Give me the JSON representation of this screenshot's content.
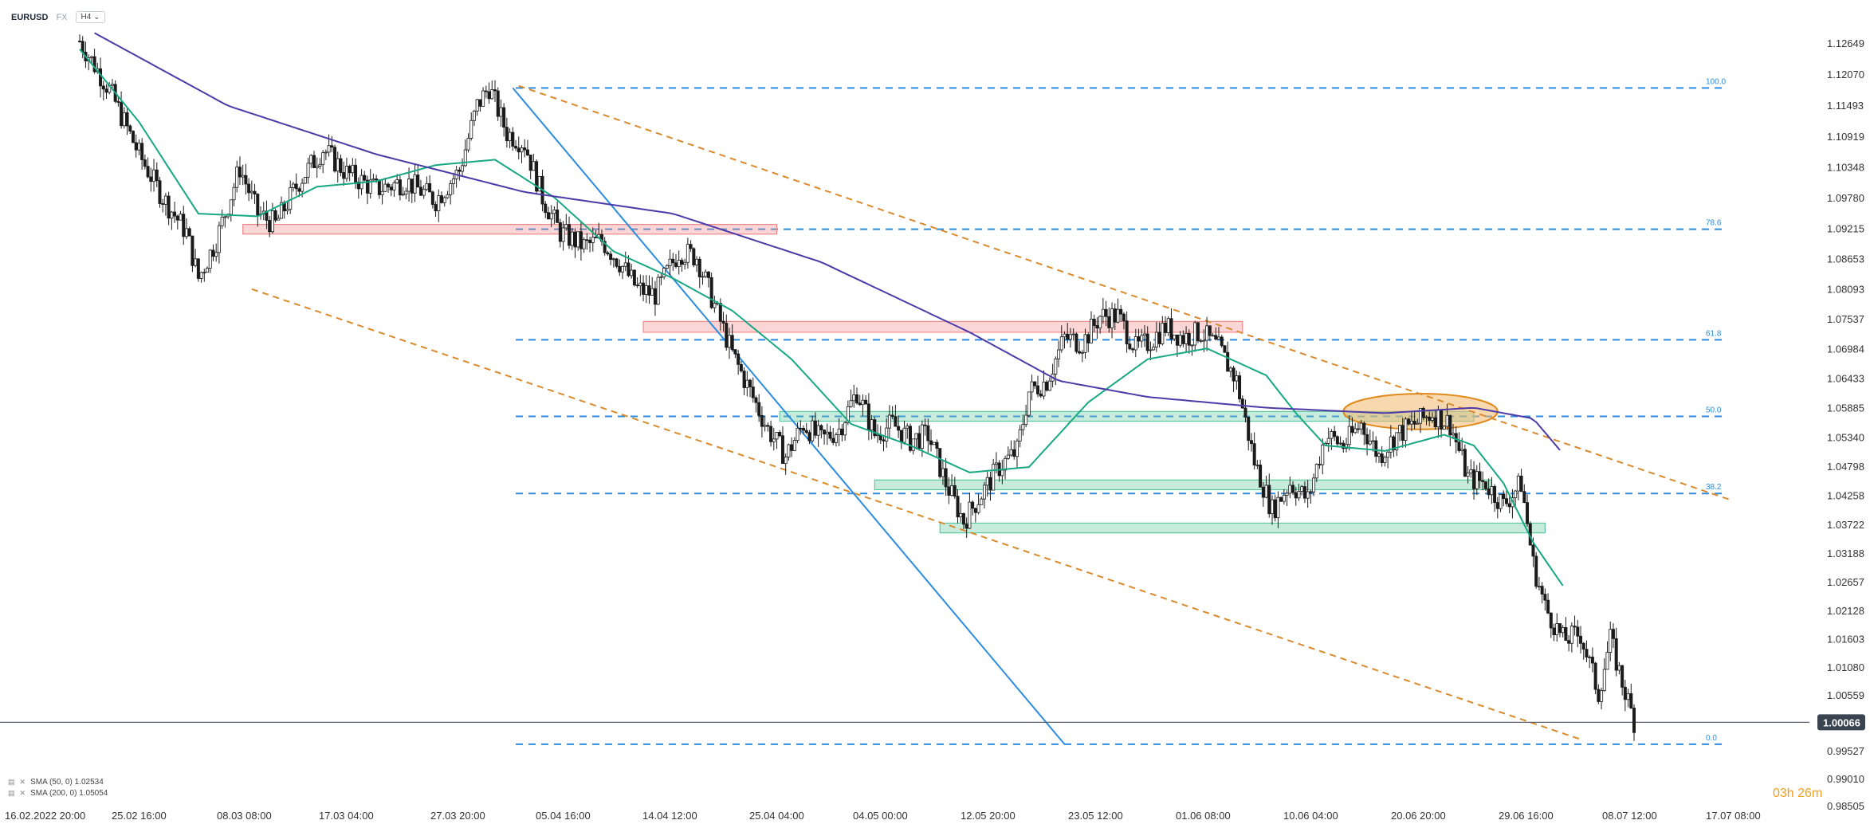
{
  "header": {
    "symbol": "EURUSD",
    "source": "FX",
    "timeframe": "H4"
  },
  "indicators": [
    {
      "label": "SMA (50, 0) 1.02534"
    },
    {
      "label": "SMA (200, 0) 1.05054"
    }
  ],
  "timer": "03h 26m",
  "chart_data": {
    "type": "candlestick",
    "symbol": "EURUSD",
    "timeframe": "H4",
    "y_ticks": [
      "1.12649",
      "1.12070",
      "1.11493",
      "1.10919",
      "1.10348",
      "1.09780",
      "1.09215",
      "1.08653",
      "1.08093",
      "1.07537",
      "1.06984",
      "1.06433",
      "1.05885",
      "1.05340",
      "1.04798",
      "1.04258",
      "1.03722",
      "1.03188",
      "1.02657",
      "1.02128",
      "1.01603",
      "1.01080",
      "1.00559",
      "1.00066",
      "0.99527",
      "0.99010",
      "0.98505"
    ],
    "x_ticks": [
      "16.02.2022 20:00",
      "25.02 16:00",
      "08.03 08:00",
      "17.03 04:00",
      "27.03 20:00",
      "05.04 16:00",
      "14.04 12:00",
      "25.04 04:00",
      "04.05 00:00",
      "12.05 20:00",
      "23.05 12:00",
      "01.06 08:00",
      "10.06 04:00",
      "20.06 20:00",
      "29.06 16:00",
      "08.07 12:00",
      "17.07 08:00"
    ],
    "ylim": [
      0.98505,
      1.12649
    ],
    "current_price": "1.00066",
    "fibonacci_levels": [
      {
        "label": "100.0",
        "price": 1.1183
      },
      {
        "label": "78.6",
        "price": 1.0921
      },
      {
        "label": "61.8",
        "price": 1.0716
      },
      {
        "label": "50.0",
        "price": 1.0574
      },
      {
        "label": "38.2",
        "price": 1.0431
      },
      {
        "label": "0.0",
        "price": 0.9966
      }
    ],
    "price_path": [
      [
        0,
        1.127
      ],
      [
        10,
        1.118
      ],
      [
        20,
        1.106
      ],
      [
        28,
        1.098
      ],
      [
        36,
        1.0915
      ],
      [
        40,
        1.083
      ],
      [
        46,
        1.09
      ],
      [
        54,
        1.1035
      ],
      [
        60,
        1.095
      ],
      [
        66,
        1.093
      ],
      [
        74,
        1.101
      ],
      [
        82,
        1.107
      ],
      [
        90,
        1.1025
      ],
      [
        100,
        1.0995
      ],
      [
        110,
        1.101
      ],
      [
        120,
        1.0975
      ],
      [
        128,
        1.103
      ],
      [
        134,
        1.115
      ],
      [
        138,
        1.1185
      ],
      [
        144,
        1.11
      ],
      [
        150,
        1.108
      ],
      [
        156,
        1.098
      ],
      [
        162,
        1.0915
      ],
      [
        170,
        1.089
      ],
      [
        176,
        1.09
      ],
      [
        182,
        1.086
      ],
      [
        188,
        1.081
      ],
      [
        194,
        1.08
      ],
      [
        202,
        1.088
      ],
      [
        208,
        1.087
      ],
      [
        214,
        1.078
      ],
      [
        220,
        1.069
      ],
      [
        226,
        1.062
      ],
      [
        232,
        1.055
      ],
      [
        238,
        1.05
      ],
      [
        244,
        1.056
      ],
      [
        250,
        1.053
      ],
      [
        256,
        1.055
      ],
      [
        262,
        1.062
      ],
      [
        268,
        1.054
      ],
      [
        274,
        1.056
      ],
      [
        280,
        1.053
      ],
      [
        286,
        1.054
      ],
      [
        292,
        1.045
      ],
      [
        298,
        1.038
      ],
      [
        304,
        1.043
      ],
      [
        310,
        1.048
      ],
      [
        316,
        1.051
      ],
      [
        320,
        1.062
      ],
      [
        326,
        1.064
      ],
      [
        332,
        1.072
      ],
      [
        338,
        1.071
      ],
      [
        344,
        1.076
      ],
      [
        350,
        1.076
      ],
      [
        356,
        1.07
      ],
      [
        360,
        1.071
      ],
      [
        366,
        1.074
      ],
      [
        372,
        1.072
      ],
      [
        378,
        1.073
      ],
      [
        384,
        1.07
      ],
      [
        390,
        1.064
      ],
      [
        396,
        1.049
      ],
      [
        402,
        1.04
      ],
      [
        408,
        1.045
      ],
      [
        414,
        1.042
      ],
      [
        420,
        1.054
      ],
      [
        426,
        1.052
      ],
      [
        432,
        1.056
      ],
      [
        438,
        1.05
      ],
      [
        444,
        1.054
      ],
      [
        450,
        1.056
      ],
      [
        456,
        1.058
      ],
      [
        462,
        1.056
      ],
      [
        468,
        1.046
      ],
      [
        474,
        1.045
      ],
      [
        480,
        1.041
      ],
      [
        486,
        1.045
      ],
      [
        490,
        1.03
      ],
      [
        494,
        1.022
      ],
      [
        500,
        1.016
      ],
      [
        506,
        1.017
      ],
      [
        512,
        1.006
      ],
      [
        516,
        1.016
      ],
      [
        520,
        1.008
      ],
      [
        524,
        1.001
      ]
    ],
    "sma50": [
      [
        0,
        1.1255
      ],
      [
        20,
        1.112
      ],
      [
        40,
        1.095
      ],
      [
        60,
        1.0945
      ],
      [
        80,
        1.1
      ],
      [
        100,
        1.101
      ],
      [
        120,
        1.104
      ],
      [
        140,
        1.105
      ],
      [
        160,
        1.098
      ],
      [
        180,
        1.088
      ],
      [
        200,
        1.083
      ],
      [
        220,
        1.077
      ],
      [
        240,
        1.068
      ],
      [
        260,
        1.056
      ],
      [
        280,
        1.052
      ],
      [
        300,
        1.047
      ],
      [
        320,
        1.048
      ],
      [
        340,
        1.06
      ],
      [
        360,
        1.068
      ],
      [
        380,
        1.07
      ],
      [
        400,
        1.065
      ],
      [
        410,
        1.058
      ],
      [
        420,
        1.052
      ],
      [
        440,
        1.051
      ],
      [
        460,
        1.054
      ],
      [
        470,
        1.052
      ],
      [
        480,
        1.045
      ],
      [
        490,
        1.034
      ],
      [
        500,
        1.026
      ]
    ],
    "sma200": [
      [
        5,
        1.1285
      ],
      [
        50,
        1.115
      ],
      [
        100,
        1.106
      ],
      [
        150,
        1.099
      ],
      [
        200,
        1.095
      ],
      [
        250,
        1.086
      ],
      [
        300,
        1.073
      ],
      [
        330,
        1.064
      ],
      [
        360,
        1.061
      ],
      [
        400,
        1.059
      ],
      [
        440,
        1.058
      ],
      [
        470,
        1.059
      ],
      [
        490,
        1.057
      ],
      [
        500,
        1.0505
      ]
    ],
    "zones": [
      {
        "kind": "resistance",
        "color": "#f08a8a",
        "price_top": 1.093,
        "price_bottom": 1.0912,
        "x_from": 55,
        "x_to": 235
      },
      {
        "kind": "resistance",
        "color": "#f08a8a",
        "price_top": 1.075,
        "price_bottom": 1.073,
        "x_from": 190,
        "x_to": 392
      },
      {
        "kind": "support",
        "color": "#5ec8a0",
        "price_top": 1.0583,
        "price_bottom": 1.0565,
        "x_from": 236,
        "x_to": 470
      },
      {
        "kind": "support",
        "color": "#5ec8a0",
        "price_top": 1.0456,
        "price_bottom": 1.0438,
        "x_from": 268,
        "x_to": 476
      },
      {
        "kind": "support",
        "color": "#5ec8a0",
        "price_top": 1.0376,
        "price_bottom": 1.0358,
        "x_from": 290,
        "x_to": 494
      }
    ],
    "channel_lines": [
      {
        "from": [
          148,
          1.1187
        ],
        "to": [
          556,
          1.042
        ]
      },
      {
        "from": [
          58,
          1.081
        ],
        "to": [
          506,
          0.9975
        ]
      }
    ],
    "trendline": {
      "from": [
        146,
        1.1183
      ],
      "to": [
        332,
        0.9966
      ]
    },
    "ellipse": {
      "center": [
        452,
        1.0583
      ],
      "rx_bars": 26,
      "ry_price": 0.0033
    }
  }
}
